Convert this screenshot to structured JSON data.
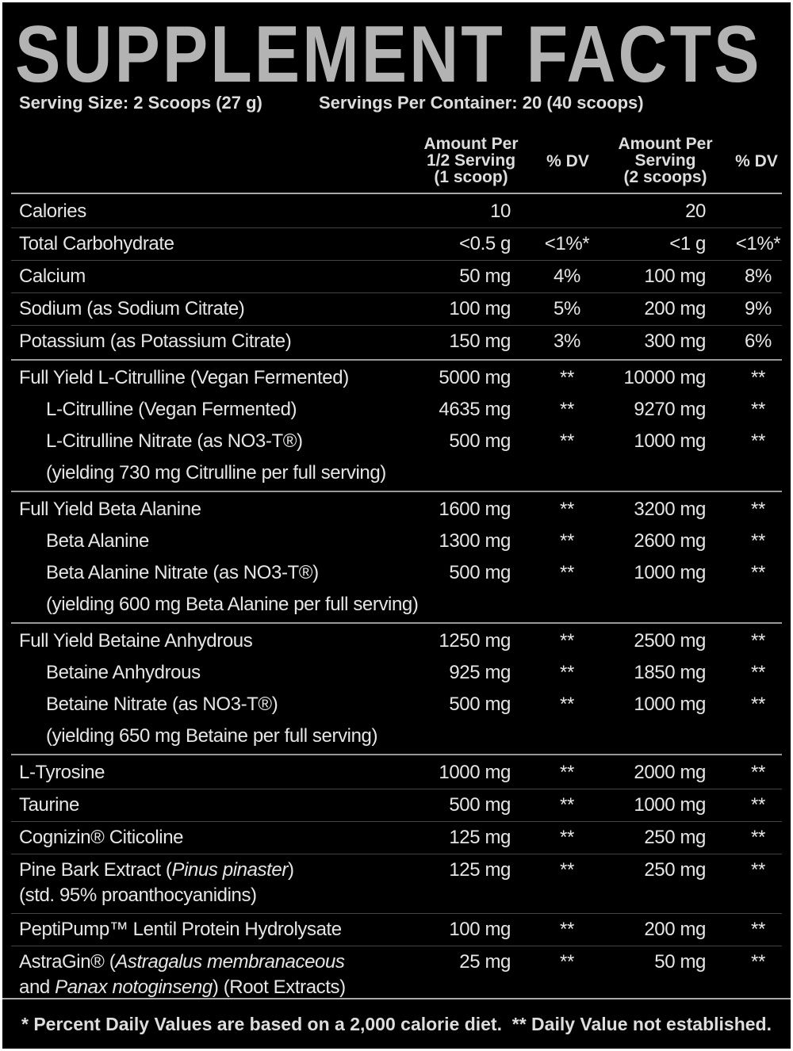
{
  "title": "SUPPLEMENT FACTS",
  "serving_size": "Serving Size: 2 Scoops (27 g)",
  "servings_per_container": "Servings Per Container: 20 (40 scoops)",
  "columns": [
    [
      "Amount Per",
      "1/2 Serving",
      "(1 scoop)"
    ],
    [
      "% DV"
    ],
    [
      "Amount Per",
      "Serving",
      "(2 scoops)"
    ],
    [
      "% DV"
    ]
  ],
  "sections": [
    {
      "rows": [
        {
          "name": [
            [
              "Calories"
            ]
          ],
          "values": [
            "10",
            null,
            "20",
            null
          ]
        },
        {
          "name": [
            [
              "Total Carbohydrate"
            ]
          ],
          "values": [
            "<0.5 g",
            "<1%*",
            "<1 g",
            "<1%*"
          ]
        },
        {
          "name": [
            [
              "Calcium"
            ]
          ],
          "values": [
            "50 mg",
            "4%",
            "100 mg",
            "8%"
          ]
        },
        {
          "name": [
            [
              "Sodium (as Sodium Citrate)"
            ]
          ],
          "values": [
            "100 mg",
            "5%",
            "200 mg",
            "9%"
          ]
        },
        {
          "name": [
            [
              "Potassium (as Potassium Citrate)"
            ]
          ],
          "values": [
            "150 mg",
            "3%",
            "300 mg",
            "6%"
          ]
        }
      ]
    },
    {
      "rows": [
        {
          "name": [
            [
              "Full Yield L-Citrulline (Vegan Fermented)"
            ]
          ],
          "values": [
            "5000 mg",
            "**",
            "10000 mg",
            "**"
          ]
        },
        {
          "name": [
            [
              "L-Citrulline (Vegan Fermented)"
            ]
          ],
          "indent": true,
          "values": [
            "4635 mg",
            "**",
            "9270 mg",
            "**"
          ]
        },
        {
          "name": [
            [
              "L-Citrulline Nitrate (as NO3-T®)"
            ]
          ],
          "indent": true,
          "values": [
            "500 mg",
            "**",
            "1000 mg",
            "**"
          ]
        },
        {
          "name": [
            [
              "(yielding 730 mg Citrulline per full serving)"
            ]
          ],
          "indent": true
        }
      ]
    },
    {
      "rows": [
        {
          "name": [
            [
              "Full Yield Beta Alanine"
            ]
          ],
          "values": [
            "1600 mg",
            "**",
            "3200 mg",
            "**"
          ]
        },
        {
          "name": [
            [
              "Beta Alanine"
            ]
          ],
          "indent": true,
          "values": [
            "1300 mg",
            "**",
            "2600 mg",
            "**"
          ]
        },
        {
          "name": [
            [
              "Beta Alanine Nitrate (as NO3-T®)"
            ]
          ],
          "indent": true,
          "values": [
            "500 mg",
            "**",
            "1000 mg",
            "**"
          ]
        },
        {
          "name": [
            [
              "(yielding 600 mg Beta Alanine per full serving)"
            ]
          ],
          "indent": true
        }
      ]
    },
    {
      "rows": [
        {
          "name": [
            [
              "Full Yield Betaine Anhydrous"
            ]
          ],
          "values": [
            "1250 mg",
            "**",
            "2500 mg",
            "**"
          ]
        },
        {
          "name": [
            [
              "Betaine Anhydrous"
            ]
          ],
          "indent": true,
          "values": [
            "925 mg",
            "**",
            "1850 mg",
            "**"
          ]
        },
        {
          "name": [
            [
              "Betaine Nitrate (as NO3-T®)"
            ]
          ],
          "indent": true,
          "values": [
            "500 mg",
            "**",
            "1000 mg",
            "**"
          ]
        },
        {
          "name": [
            [
              "(yielding 650 mg Betaine per full serving)"
            ]
          ],
          "indent": true
        }
      ]
    },
    {
      "rows": [
        {
          "name": [
            [
              "L-Tyrosine"
            ]
          ],
          "values": [
            "1000 mg",
            "**",
            "2000 mg",
            "**"
          ]
        },
        {
          "name": [
            [
              "Taurine"
            ]
          ],
          "values": [
            "500 mg",
            "**",
            "1000 mg",
            "**"
          ]
        },
        {
          "name": [
            [
              "Cognizin® Citicoline"
            ]
          ],
          "values": [
            "125 mg",
            "**",
            "250 mg",
            "**"
          ]
        },
        {
          "name": [
            [
              "Pine Bark Extract (",
              {
                "text": "Pinus pinaster",
                "italic": true
              },
              ")"
            ],
            [
              "(std. 95% proanthocyanidins)"
            ]
          ],
          "values": [
            "125 mg",
            "**",
            "250 mg",
            "**"
          ]
        },
        {
          "name": [
            [
              "PeptiPump™ Lentil Protein Hydrolysate"
            ]
          ],
          "values": [
            "100 mg",
            "**",
            "200 mg",
            "**"
          ]
        },
        {
          "name": [
            [
              "AstraGin® (",
              {
                "text": "Astragalus membranaceous",
                "italic": true
              }
            ],
            [
              "and ",
              {
                "text": "Panax notoginseng",
                "italic": true
              },
              ") (Root Extracts)"
            ]
          ],
          "values": [
            "25 mg",
            "**",
            "50 mg",
            "**"
          ]
        }
      ]
    }
  ],
  "footer": "* Percent Daily Values are based on a 2,000 calorie diet.  ** Daily Value not established."
}
